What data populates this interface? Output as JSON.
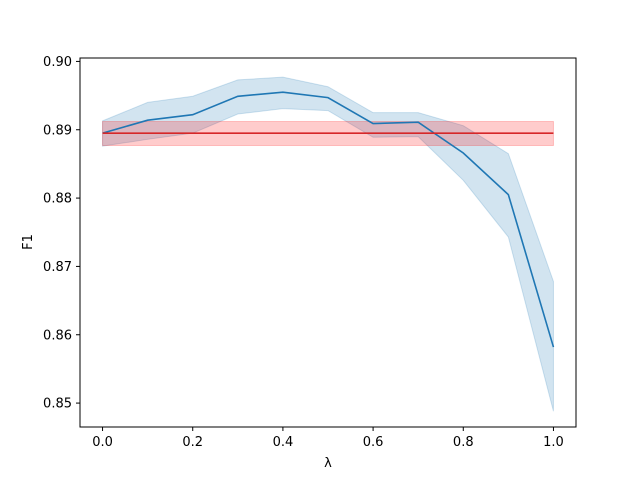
{
  "chart_data": {
    "type": "line",
    "title": "",
    "xlabel": "λ",
    "ylabel": "F1",
    "xlim": [
      -0.05,
      1.05
    ],
    "ylim": [
      0.8465,
      0.9005
    ],
    "grid": false,
    "x_ticks": [
      {
        "value": 0.0,
        "label": "0.0"
      },
      {
        "value": 0.2,
        "label": "0.2"
      },
      {
        "value": 0.4,
        "label": "0.4"
      },
      {
        "value": 0.6,
        "label": "0.6"
      },
      {
        "value": 0.8,
        "label": "0.8"
      },
      {
        "value": 1.0,
        "label": "1.0"
      }
    ],
    "y_ticks": [
      {
        "value": 0.85,
        "label": "0.85"
      },
      {
        "value": 0.86,
        "label": "0.86"
      },
      {
        "value": 0.87,
        "label": "0.87"
      },
      {
        "value": 0.88,
        "label": "0.88"
      },
      {
        "value": 0.89,
        "label": "0.89"
      },
      {
        "value": 0.9,
        "label": "0.90"
      }
    ],
    "series": [
      {
        "color": "#1f77b4",
        "band_color": "#1f77b4",
        "x": [
          0.0,
          0.1,
          0.2,
          0.3,
          0.4,
          0.5,
          0.6,
          0.7,
          0.8,
          0.9,
          1.0
        ],
        "y": [
          0.8895,
          0.8914,
          0.8922,
          0.8949,
          0.8955,
          0.8947,
          0.8909,
          0.8911,
          0.8866,
          0.8805,
          0.8582
        ],
        "lower": [
          0.8876,
          0.8886,
          0.8895,
          0.8923,
          0.8931,
          0.8928,
          0.8889,
          0.889,
          0.8826,
          0.8743,
          0.8488
        ],
        "upper": [
          0.8913,
          0.894,
          0.8949,
          0.8973,
          0.8977,
          0.8963,
          0.8925,
          0.8925,
          0.8906,
          0.8865,
          0.8678
        ]
      },
      {
        "color": "#d62728",
        "band_color": "#ff0000",
        "x": [
          0.0,
          1.0
        ],
        "y": [
          0.8895,
          0.8895
        ],
        "lower": [
          0.8877,
          0.8877
        ],
        "upper": [
          0.8912,
          0.8912
        ]
      }
    ]
  }
}
